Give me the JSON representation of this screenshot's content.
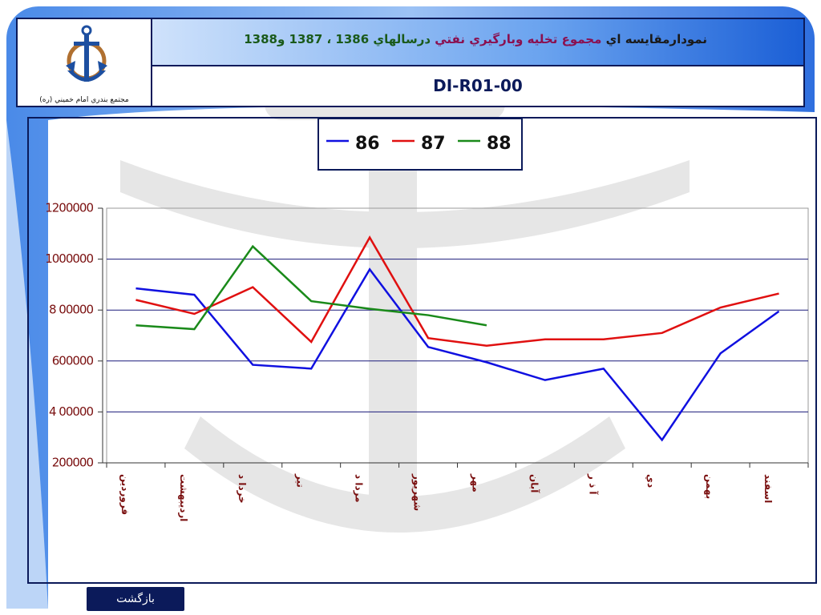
{
  "header": {
    "title_parts": [
      "نمودارمقايسه اي ",
      "مجموع تخليه وبارگيري نفتي",
      " درسالهاي 1386 ، 1387 و1388"
    ],
    "code": "DI-R01-00",
    "logo_caption": "مجتمع بندري امام خميني (ره)"
  },
  "chart_data": {
    "type": "line",
    "categories": [
      "فروردين",
      "ارديبهشت",
      "خردا د",
      "تير",
      "مردا د",
      "شهريور",
      "مهر",
      "آبان",
      "آ ذ ر",
      "دي",
      "بهمن",
      "اسفند"
    ],
    "series": [
      {
        "name": "86",
        "color": "#1010e0",
        "values": [
          885000,
          860000,
          585000,
          570000,
          960000,
          655000,
          595000,
          525000,
          570000,
          290000,
          630000,
          795000
        ]
      },
      {
        "name": "87",
        "color": "#e01010",
        "values": [
          840000,
          785000,
          890000,
          675000,
          1085000,
          690000,
          660000,
          685000,
          685000,
          710000,
          810000,
          865000
        ]
      },
      {
        "name": "88",
        "color": "#1a8a1a",
        "values": [
          740000,
          725000,
          1050000,
          835000,
          805000,
          780000,
          740000,
          null,
          null,
          null,
          null,
          null
        ]
      }
    ],
    "ylim": [
      200000,
      1200000
    ],
    "yticks": [
      200000,
      {
        "value": 400000,
        "label": "4 00000"
      },
      600000,
      {
        "value": 800000,
        "label": "8 00000"
      },
      1000000,
      1200000
    ],
    "grid": true,
    "legend": "top"
  },
  "button": "بازگشت"
}
